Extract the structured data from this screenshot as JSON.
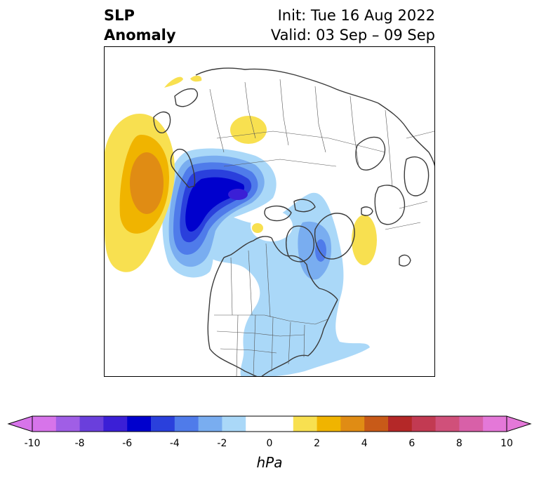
{
  "title": {
    "left_line1": "SLP",
    "left_line2": "Anomaly",
    "init": "Init: Tue 16 Aug 2022",
    "valid": "Valid: 03 Sep – 09 Sep"
  },
  "colorbar": {
    "unit": "hPa",
    "ticks": [
      "-10",
      "-8",
      "-6",
      "-4",
      "-2",
      "0",
      "2",
      "4",
      "6",
      "8",
      "10"
    ],
    "colors": [
      "#d774ea",
      "#a05ee6",
      "#6a3fdc",
      "#3b1fd6",
      "#0000cd",
      "#2a40dc",
      "#4f7bea",
      "#79adf0",
      "#aad8f8",
      "#ffffff",
      "#ffffff",
      "#f8e050",
      "#f0b400",
      "#e08c14",
      "#c85a18",
      "#b42828",
      "#c23a52",
      "#d0507a",
      "#d860a8",
      "#e478d8"
    ]
  },
  "legend_colors": {
    "neg_light": "#aad8f8",
    "neg_mid": "#79adf0",
    "neg_mid2": "#4f7bea",
    "neg_strong": "#2a40dc",
    "neg_core": "#0000cd",
    "neg_max": "#3b1fd6",
    "pos_light": "#f8e050",
    "pos_mid": "#f0b400",
    "pos_strong": "#e08c14"
  }
}
